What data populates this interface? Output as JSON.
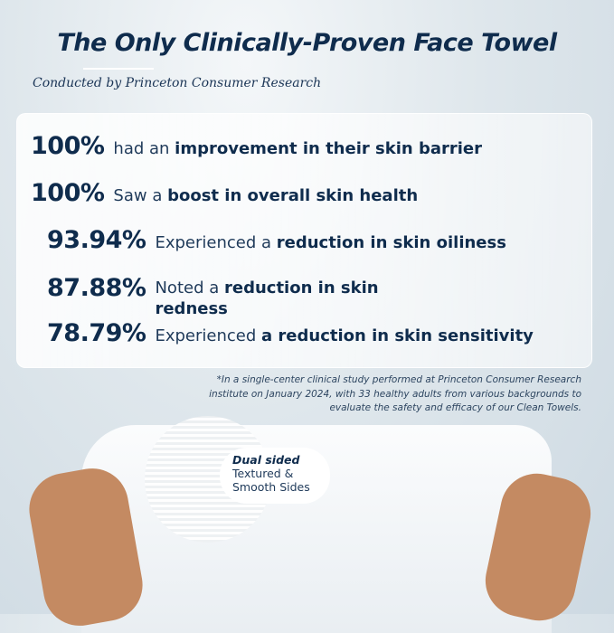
{
  "header": {
    "title": "The Only Clinically-Proven Face Towel",
    "subtitle": "Conducted by Princeton Consumer Research"
  },
  "stats": [
    {
      "pct": "100%",
      "pre": "had an ",
      "bold": "improvement in their skin barrier",
      "post": ""
    },
    {
      "pct": "100%",
      "pre": "Saw a ",
      "bold": "boost in overall skin health",
      "post": ""
    },
    {
      "pct": "93.94%",
      "pre": "Experienced a ",
      "bold": "reduction in skin oiliness",
      "post": ""
    },
    {
      "pct": "87.88%",
      "pre": "Noted a ",
      "bold": "reduction in skin redness",
      "post": ""
    },
    {
      "pct": "78.79%",
      "pre": "Experienced ",
      "bold": "a reduction in skin sensitivity",
      "post": ""
    }
  ],
  "footnote": "*In a single-center clinical study performed at Princeton Consumer Research institute on January 2024, with 33 healthy adults from various backgrounds to evaluate the safety and efficacy of our Clean Towels.",
  "callout": {
    "heading": "Dual sided",
    "line1": "Textured &",
    "line2": "Smooth Sides"
  },
  "colors": {
    "navy": "#0f2c4d",
    "background": "#cdd9e2"
  }
}
